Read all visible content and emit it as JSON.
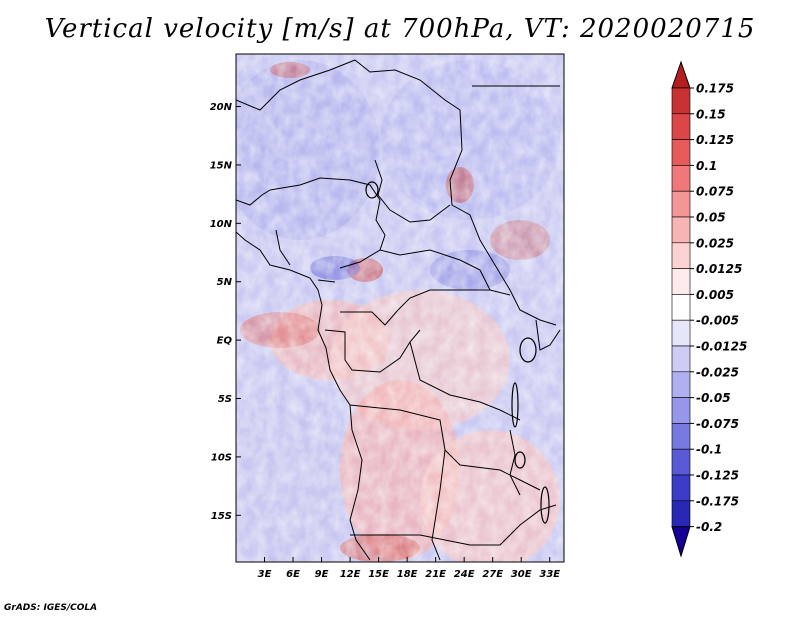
{
  "title": "Vertical velocity [m/s] at 700hPa, VT: 2020020715",
  "credit": "GrADS: IGES/COLA",
  "map": {
    "lon_range": [
      0,
      34.5
    ],
    "lat_range": [
      -19,
      24.5
    ],
    "lat_ticks": [
      {
        "value": 20,
        "label": "20N"
      },
      {
        "value": 15,
        "label": "15N"
      },
      {
        "value": 10,
        "label": "10N"
      },
      {
        "value": 5,
        "label": "5N"
      },
      {
        "value": 0,
        "label": "EQ"
      },
      {
        "value": -5,
        "label": "5S"
      },
      {
        "value": -10,
        "label": "10S"
      },
      {
        "value": -15,
        "label": "15S"
      }
    ],
    "lon_ticks": [
      {
        "value": 3,
        "label": "3E"
      },
      {
        "value": 6,
        "label": "6E"
      },
      {
        "value": 9,
        "label": "9E"
      },
      {
        "value": 12,
        "label": "12E"
      },
      {
        "value": 15,
        "label": "15E"
      },
      {
        "value": 18,
        "label": "18E"
      },
      {
        "value": 21,
        "label": "21E"
      },
      {
        "value": 24,
        "label": "24E"
      },
      {
        "value": 27,
        "label": "27E"
      },
      {
        "value": 30,
        "label": "30E"
      },
      {
        "value": 33,
        "label": "33E"
      }
    ]
  },
  "colorbar": {
    "labels": [
      "0.175",
      "0.15",
      "0.125",
      "0.1",
      "0.075",
      "0.05",
      "0.025",
      "0.0125",
      "0.005",
      "-0.005",
      "-0.0125",
      "-0.025",
      "-0.05",
      "-0.075",
      "-0.1",
      "-0.125",
      "-0.175",
      "-0.2"
    ],
    "colors": [
      "#b41e1e",
      "#c83232",
      "#dc4646",
      "#e65a5a",
      "#f07878",
      "#f59696",
      "#f8b4b4",
      "#fbd2d2",
      "#fdeaea",
      "#ffffff",
      "#e6e6fb",
      "#ccccf5",
      "#b0b0f0",
      "#9696eb",
      "#7878e1",
      "#5a5ad7",
      "#3c3cc8",
      "#2828b4",
      "#140096"
    ]
  }
}
